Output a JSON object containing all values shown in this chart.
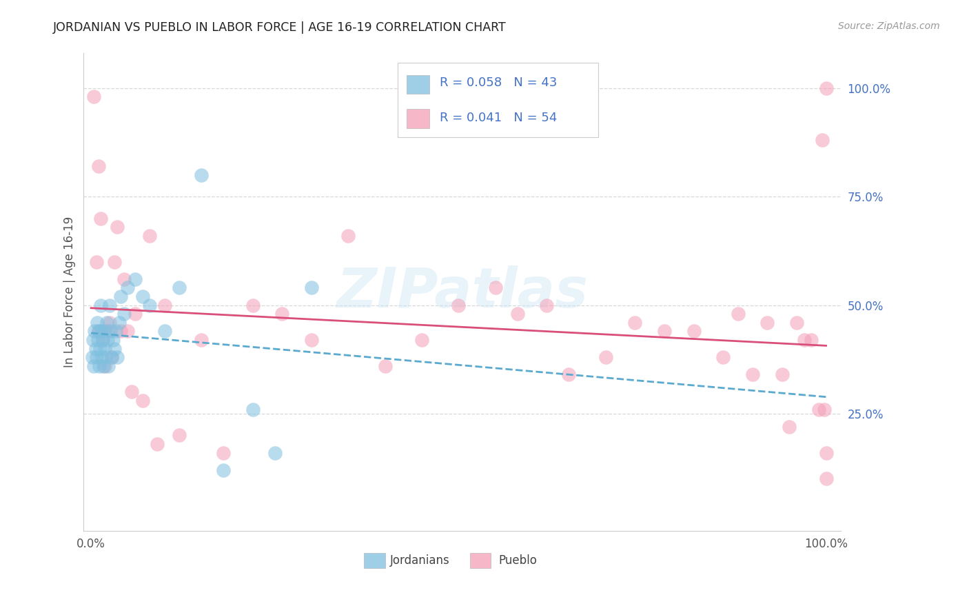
{
  "title": "JORDANIAN VS PUEBLO IN LABOR FORCE | AGE 16-19 CORRELATION CHART",
  "source": "Source: ZipAtlas.com",
  "ylabel": "In Labor Force | Age 16-19",
  "x_lim": [
    -0.01,
    1.02
  ],
  "y_lim": [
    -0.02,
    1.08
  ],
  "watermark": "ZIPatlas",
  "blue_color": "#7fbfdf",
  "pink_color": "#f4a0b8",
  "blue_line_color": "#5aaad0",
  "pink_line_color": "#d94f7a",
  "right_label_color": "#4472c6",
  "legend_r1": "R = 0.058",
  "legend_n1": "N = 43",
  "legend_r2": "R = 0.041",
  "legend_n2": "N = 54",
  "legend_label1": "Jordanians",
  "legend_label2": "Pueblo",
  "jordanians_x": [
    0.002,
    0.003,
    0.004,
    0.005,
    0.006,
    0.007,
    0.008,
    0.009,
    0.01,
    0.011,
    0.012,
    0.013,
    0.014,
    0.015,
    0.016,
    0.017,
    0.018,
    0.019,
    0.02,
    0.021,
    0.022,
    0.023,
    0.025,
    0.026,
    0.028,
    0.03,
    0.032,
    0.034,
    0.036,
    0.038,
    0.04,
    0.045,
    0.05,
    0.06,
    0.07,
    0.08,
    0.1,
    0.12,
    0.15,
    0.18,
    0.22,
    0.25,
    0.3
  ],
  "jordanians_y": [
    0.38,
    0.42,
    0.36,
    0.44,
    0.4,
    0.38,
    0.46,
    0.42,
    0.44,
    0.36,
    0.4,
    0.5,
    0.44,
    0.38,
    0.42,
    0.36,
    0.44,
    0.4,
    0.38,
    0.46,
    0.42,
    0.36,
    0.5,
    0.44,
    0.38,
    0.42,
    0.4,
    0.44,
    0.38,
    0.46,
    0.52,
    0.48,
    0.54,
    0.56,
    0.52,
    0.5,
    0.44,
    0.54,
    0.8,
    0.12,
    0.26,
    0.16,
    0.54
  ],
  "pueblo_x": [
    0.004,
    0.007,
    0.01,
    0.013,
    0.016,
    0.019,
    0.022,
    0.025,
    0.028,
    0.032,
    0.036,
    0.04,
    0.045,
    0.05,
    0.055,
    0.06,
    0.07,
    0.08,
    0.09,
    0.1,
    0.12,
    0.15,
    0.18,
    0.22,
    0.26,
    0.3,
    0.35,
    0.4,
    0.45,
    0.5,
    0.55,
    0.58,
    0.62,
    0.65,
    0.7,
    0.74,
    0.78,
    0.82,
    0.86,
    0.88,
    0.9,
    0.92,
    0.94,
    0.96,
    0.97,
    0.98,
    0.99,
    0.995,
    0.998,
    1.0,
    1.0,
    1.0,
    0.01,
    0.95
  ],
  "pueblo_y": [
    0.98,
    0.6,
    0.44,
    0.7,
    0.42,
    0.36,
    0.44,
    0.46,
    0.38,
    0.6,
    0.68,
    0.44,
    0.56,
    0.44,
    0.3,
    0.48,
    0.28,
    0.66,
    0.18,
    0.5,
    0.2,
    0.42,
    0.16,
    0.5,
    0.48,
    0.42,
    0.66,
    0.36,
    0.42,
    0.5,
    0.54,
    0.48,
    0.5,
    0.34,
    0.38,
    0.46,
    0.44,
    0.44,
    0.38,
    0.48,
    0.34,
    0.46,
    0.34,
    0.46,
    0.42,
    0.42,
    0.26,
    0.88,
    0.26,
    1.0,
    0.16,
    0.1,
    0.82,
    0.22
  ]
}
